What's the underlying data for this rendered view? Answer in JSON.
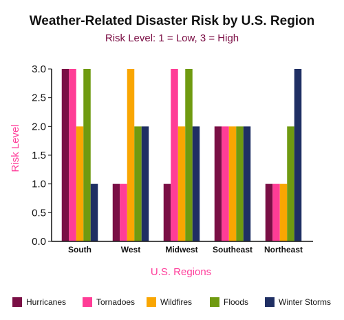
{
  "chart_data": {
    "type": "bar",
    "title": "Weather-Related Disaster Risk by U.S. Region",
    "subtitle": "Risk Level: 1 = Low, 3 = High",
    "xlabel": "U.S. Regions",
    "ylabel": "Risk Level",
    "ylim": [
      0,
      3
    ],
    "yticks": [
      "0.0",
      "0.5",
      "1.0",
      "1.5",
      "2.0",
      "2.5",
      "3.0"
    ],
    "categories": [
      "South",
      "West",
      "Midwest",
      "Southeast",
      "Northeast"
    ],
    "grid": false,
    "legend_position": "bottom",
    "series": [
      {
        "name": "Hurricanes",
        "color": "#7a0f45",
        "values": [
          3,
          1,
          1,
          2,
          1
        ]
      },
      {
        "name": "Tornadoes",
        "color": "#ff3d96",
        "values": [
          3,
          1,
          3,
          2,
          1
        ]
      },
      {
        "name": "Wildfires",
        "color": "#f9a602",
        "values": [
          2,
          3,
          2,
          2,
          1
        ]
      },
      {
        "name": "Floods",
        "color": "#6f9a10",
        "values": [
          3,
          2,
          3,
          2,
          2
        ]
      },
      {
        "name": "Winter Storms",
        "color": "#1f2f63",
        "values": [
          1,
          2,
          2,
          2,
          3
        ]
      }
    ]
  }
}
